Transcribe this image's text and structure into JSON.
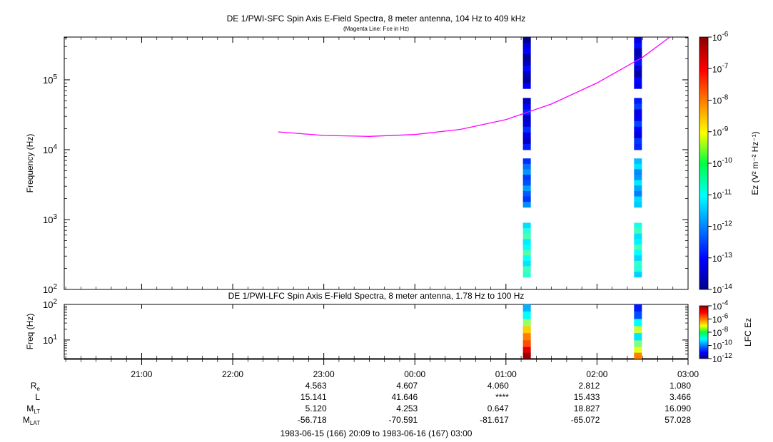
{
  "title": "DE 1/PWI-SFC  Spin Axis E-Field Spectra, 8 meter antenna, 104 Hz to 409 kHz",
  "subtitle": "(Magenta Line: Fce in Hz)",
  "top_panel": {
    "ylabel": "Frequency (Hz)",
    "y_ticks": [
      {
        "base": "10",
        "exp": "2"
      },
      {
        "base": "10",
        "exp": "3"
      },
      {
        "base": "10",
        "exp": "4"
      },
      {
        "base": "10",
        "exp": "5"
      }
    ],
    "colorbar_label": "Ez (V² m⁻² Hz⁻¹)",
    "colorbar_ticks": [
      {
        "base": "10",
        "exp": "-6"
      },
      {
        "base": "10",
        "exp": "-7"
      },
      {
        "base": "10",
        "exp": "-8"
      },
      {
        "base": "10",
        "exp": "-9"
      },
      {
        "base": "10",
        "exp": "-10"
      },
      {
        "base": "10",
        "exp": "-11"
      },
      {
        "base": "10",
        "exp": "-12"
      },
      {
        "base": "10",
        "exp": "-13"
      },
      {
        "base": "10",
        "exp": "-14"
      }
    ]
  },
  "bottom_panel": {
    "title": "DE 1/PWI-LFC  Spin Axis E-Field Spectra, 8 meter antenna, 1.78 Hz to 100 Hz",
    "ylabel": "Freq (Hz)",
    "y_ticks": [
      {
        "base": "10",
        "exp": "1"
      },
      {
        "base": "10",
        "exp": "2"
      }
    ],
    "colorbar_label": "LFC Ez",
    "colorbar_ticks": [
      {
        "base": "10",
        "exp": "-4"
      },
      {
        "base": "10",
        "exp": "-6"
      },
      {
        "base": "10",
        "exp": "-8"
      },
      {
        "base": "10",
        "exp": "-10"
      },
      {
        "base": "10",
        "exp": "-12"
      }
    ]
  },
  "x_ticks": [
    "21:00",
    "22:00",
    "23:00",
    "00:00",
    "01:00",
    "02:00",
    "03:00"
  ],
  "ephemeris": {
    "rows": [
      {
        "label": "R",
        "sub": "e",
        "values": [
          "4.563",
          "4.607",
          "4.060",
          "2.812",
          "1.080"
        ]
      },
      {
        "label": "L",
        "sub": "",
        "values": [
          "15.141",
          "41.646",
          "****",
          "15.433",
          "3.466"
        ]
      },
      {
        "label": "M",
        "sub": "LT",
        "values": [
          "5.120",
          "4.253",
          "0.647",
          "18.827",
          "16.090"
        ]
      },
      {
        "label": "M",
        "sub": "LAT",
        "values": [
          "-56.718",
          "-70.591",
          "-81.617",
          "-65.072",
          "57.028"
        ]
      }
    ]
  },
  "time_range": "1983-06-15 (166) 20:09 to 1983-06-16 (167) 03:00",
  "colors": {
    "fce_line": "#ff00ff"
  },
  "chart_data": {
    "type": "heatmap",
    "x_unit": "UT hours since 1983-06-15 00:00",
    "xlim": [
      20.15,
      27.0
    ],
    "top": {
      "ylim_hz": [
        100,
        409000
      ],
      "y_scale": "log",
      "zlim": [
        1e-14,
        1e-06
      ],
      "z_scale": "log",
      "fce_line": {
        "x": [
          22.5,
          23.0,
          23.5,
          24.0,
          24.5,
          25.0,
          25.5,
          26.0,
          26.5,
          26.8
        ],
        "y_hz": [
          18000,
          16000,
          15500,
          16500,
          19500,
          27000,
          45000,
          90000,
          210000,
          409000
        ]
      },
      "columns": [
        {
          "x": 25.23,
          "segments": [
            {
              "f_min": 150,
              "f_max": 900,
              "log10_z": -10.8
            },
            {
              "f_min": 1500,
              "f_max": 7500,
              "log10_z": -12.2
            },
            {
              "f_min": 10000,
              "f_max": 55000,
              "log10_z": -13.1
            },
            {
              "f_min": 75000,
              "f_max": 409000,
              "log10_z": -13.4
            }
          ]
        },
        {
          "x": 26.45,
          "segments": [
            {
              "f_min": 150,
              "f_max": 900,
              "log10_z": -10.9
            },
            {
              "f_min": 1500,
              "f_max": 7500,
              "log10_z": -11.6
            },
            {
              "f_min": 10000,
              "f_max": 55000,
              "log10_z": -12.9
            },
            {
              "f_min": 75000,
              "f_max": 409000,
              "log10_z": -13.3
            }
          ]
        }
      ]
    },
    "bottom": {
      "ylim_hz": [
        3,
        100
      ],
      "y_scale": "log",
      "zlim": [
        1e-12,
        0.0001
      ],
      "z_scale": "log",
      "columns": [
        {
          "x": 25.23,
          "bins": [
            {
              "f_min": 3.0,
              "f_max": 4.5,
              "log10_z": -4.2
            },
            {
              "f_min": 4.5,
              "f_max": 6.5,
              "log10_z": -4.8
            },
            {
              "f_min": 6.5,
              "f_max": 10,
              "log10_z": -5.6
            },
            {
              "f_min": 10,
              "f_max": 16,
              "log10_z": -6.0
            },
            {
              "f_min": 16,
              "f_max": 25,
              "log10_z": -6.6
            },
            {
              "f_min": 25,
              "f_max": 40,
              "log10_z": -7.8
            },
            {
              "f_min": 40,
              "f_max": 65,
              "log10_z": -9.0
            },
            {
              "f_min": 65,
              "f_max": 100,
              "log10_z": -9.6
            }
          ]
        },
        {
          "x": 26.45,
          "bins": [
            {
              "f_min": 3.0,
              "f_max": 4.5,
              "log10_z": -6.0
            },
            {
              "f_min": 4.5,
              "f_max": 6.5,
              "log10_z": -7.2
            },
            {
              "f_min": 6.5,
              "f_max": 10,
              "log10_z": -8.0
            },
            {
              "f_min": 10,
              "f_max": 16,
              "log10_z": -9.2
            },
            {
              "f_min": 16,
              "f_max": 25,
              "log10_z": -7.4
            },
            {
              "f_min": 25,
              "f_max": 40,
              "log10_z": -9.0
            },
            {
              "f_min": 40,
              "f_max": 65,
              "log10_z": -10.4
            },
            {
              "f_min": 65,
              "f_max": 100,
              "log10_z": -10.8
            }
          ]
        }
      ]
    }
  }
}
